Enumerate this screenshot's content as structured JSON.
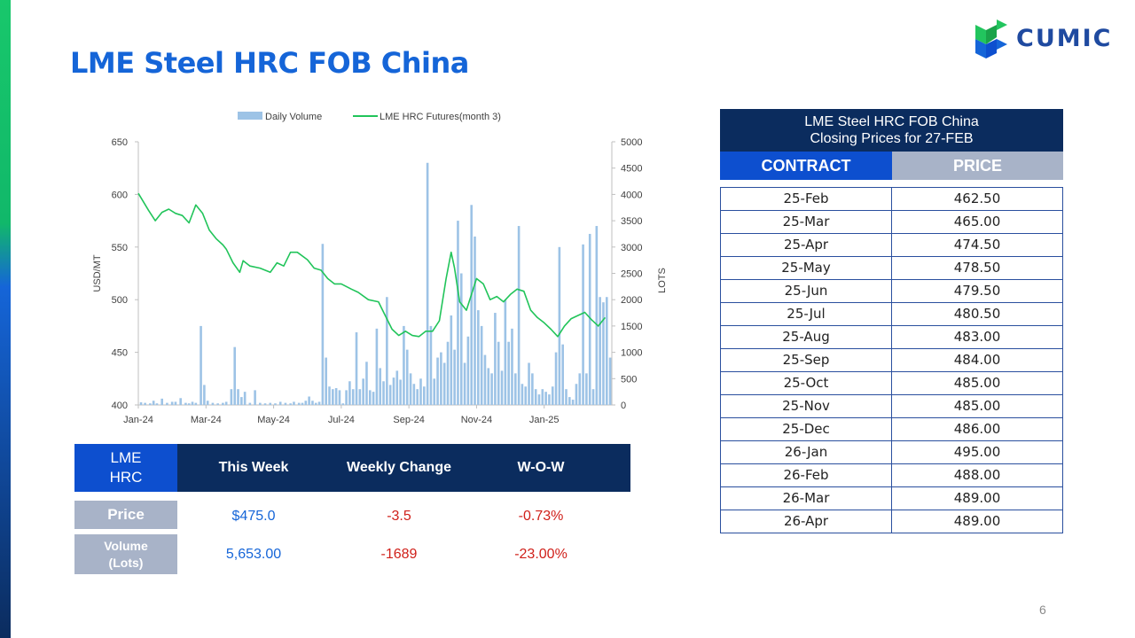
{
  "slide": {
    "title": "LME Steel HRC FOB China",
    "page_number": "6",
    "logo_text": "CUMIC"
  },
  "chart_data": {
    "type": "bar+line",
    "legend": [
      "Daily Volume",
      "LME HRC Futures(month 3)"
    ],
    "legend_position": "top",
    "ylabel_left": "USD/MT",
    "ylabel_right": "LOTS",
    "ylim_left": [
      400,
      650
    ],
    "ylim_right": [
      0,
      5000
    ],
    "y_ticks_left": [
      "400",
      "450",
      "500",
      "550",
      "600",
      "650"
    ],
    "y_ticks_right": [
      "0",
      "500",
      "1000",
      "1500",
      "2000",
      "2500",
      "3000",
      "3500",
      "4000",
      "4500",
      "5000"
    ],
    "x_ticks": [
      "Jan-24",
      "Mar-24",
      "May-24",
      "Jul-24",
      "Sep-24",
      "Nov-24",
      "Jan-25"
    ],
    "x_tick_months": [
      0,
      2,
      4,
      6,
      8,
      10,
      12
    ],
    "x_range_months": [
      0,
      14
    ],
    "colors": {
      "volume": "#9dc3e6",
      "futures": "#21c45a"
    },
    "futures_series": {
      "name": "LME HRC Futures(month 3)",
      "points": [
        [
          0.0,
          601
        ],
        [
          0.3,
          585
        ],
        [
          0.5,
          575
        ],
        [
          0.7,
          583
        ],
        [
          0.9,
          586
        ],
        [
          1.1,
          582
        ],
        [
          1.3,
          580
        ],
        [
          1.5,
          573
        ],
        [
          1.7,
          590
        ],
        [
          1.9,
          582
        ],
        [
          2.1,
          566
        ],
        [
          2.3,
          558
        ],
        [
          2.5,
          552
        ],
        [
          2.6,
          548
        ],
        [
          2.8,
          535
        ],
        [
          3.0,
          526
        ],
        [
          3.1,
          537
        ],
        [
          3.3,
          532
        ],
        [
          3.6,
          530
        ],
        [
          3.9,
          526
        ],
        [
          4.1,
          535
        ],
        [
          4.3,
          532
        ],
        [
          4.5,
          545
        ],
        [
          4.7,
          545
        ],
        [
          5.0,
          538
        ],
        [
          5.2,
          530
        ],
        [
          5.4,
          528
        ],
        [
          5.6,
          520
        ],
        [
          5.8,
          515
        ],
        [
          6.0,
          515
        ],
        [
          6.3,
          510
        ],
        [
          6.5,
          507
        ],
        [
          6.8,
          500
        ],
        [
          7.1,
          498
        ],
        [
          7.3,
          485
        ],
        [
          7.5,
          472
        ],
        [
          7.7,
          466
        ],
        [
          7.9,
          470
        ],
        [
          8.1,
          466
        ],
        [
          8.3,
          465
        ],
        [
          8.5,
          470
        ],
        [
          8.7,
          470
        ],
        [
          8.9,
          480
        ],
        [
          9.1,
          520
        ],
        [
          9.25,
          545
        ],
        [
          9.35,
          530
        ],
        [
          9.5,
          498
        ],
        [
          9.7,
          490
        ],
        [
          9.9,
          510
        ],
        [
          10.0,
          520
        ],
        [
          10.2,
          515
        ],
        [
          10.4,
          500
        ],
        [
          10.6,
          503
        ],
        [
          10.8,
          498
        ],
        [
          11.0,
          505
        ],
        [
          11.2,
          510
        ],
        [
          11.4,
          508
        ],
        [
          11.6,
          490
        ],
        [
          11.8,
          483
        ],
        [
          12.0,
          478
        ],
        [
          12.2,
          472
        ],
        [
          12.4,
          465
        ],
        [
          12.6,
          475
        ],
        [
          12.8,
          482
        ],
        [
          13.0,
          485
        ],
        [
          13.2,
          488
        ],
        [
          13.4,
          481
        ],
        [
          13.6,
          475
        ],
        [
          13.8,
          483
        ]
      ]
    },
    "volume_series": {
      "name": "Daily Volume",
      "points": [
        [
          0.08,
          50
        ],
        [
          0.2,
          40
        ],
        [
          0.35,
          30
        ],
        [
          0.45,
          80
        ],
        [
          0.55,
          30
        ],
        [
          0.7,
          120
        ],
        [
          0.85,
          40
        ],
        [
          1.0,
          60
        ],
        [
          1.1,
          60
        ],
        [
          1.25,
          130
        ],
        [
          1.4,
          40
        ],
        [
          1.5,
          30
        ],
        [
          1.6,
          60
        ],
        [
          1.7,
          40
        ],
        [
          1.85,
          1500
        ],
        [
          1.95,
          380
        ],
        [
          2.05,
          80
        ],
        [
          2.2,
          40
        ],
        [
          2.35,
          30
        ],
        [
          2.5,
          40
        ],
        [
          2.6,
          60
        ],
        [
          2.75,
          300
        ],
        [
          2.85,
          1100
        ],
        [
          2.95,
          300
        ],
        [
          3.05,
          150
        ],
        [
          3.15,
          250
        ],
        [
          3.3,
          40
        ],
        [
          3.45,
          280
        ],
        [
          3.6,
          40
        ],
        [
          3.75,
          30
        ],
        [
          3.9,
          40
        ],
        [
          4.05,
          30
        ],
        [
          4.2,
          60
        ],
        [
          4.35,
          40
        ],
        [
          4.5,
          30
        ],
        [
          4.6,
          60
        ],
        [
          4.75,
          40
        ],
        [
          4.85,
          40
        ],
        [
          4.95,
          80
        ],
        [
          5.05,
          160
        ],
        [
          5.15,
          80
        ],
        [
          5.25,
          40
        ],
        [
          5.35,
          60
        ],
        [
          5.45,
          3060
        ],
        [
          5.55,
          900
        ],
        [
          5.65,
          350
        ],
        [
          5.75,
          300
        ],
        [
          5.85,
          320
        ],
        [
          5.95,
          280
        ],
        [
          6.05,
          30
        ],
        [
          6.15,
          280
        ],
        [
          6.25,
          450
        ],
        [
          6.35,
          300
        ],
        [
          6.45,
          1380
        ],
        [
          6.55,
          300
        ],
        [
          6.65,
          500
        ],
        [
          6.75,
          820
        ],
        [
          6.85,
          280
        ],
        [
          6.95,
          250
        ],
        [
          7.05,
          1450
        ],
        [
          7.15,
          700
        ],
        [
          7.25,
          450
        ],
        [
          7.35,
          2050
        ],
        [
          7.45,
          380
        ],
        [
          7.55,
          520
        ],
        [
          7.65,
          650
        ],
        [
          7.75,
          480
        ],
        [
          7.85,
          1500
        ],
        [
          7.95,
          1050
        ],
        [
          8.05,
          600
        ],
        [
          8.15,
          400
        ],
        [
          8.25,
          300
        ],
        [
          8.35,
          500
        ],
        [
          8.45,
          350
        ],
        [
          8.55,
          4600
        ],
        [
          8.65,
          1500
        ],
        [
          8.75,
          500
        ],
        [
          8.85,
          900
        ],
        [
          8.95,
          1000
        ],
        [
          9.05,
          800
        ],
        [
          9.15,
          1200
        ],
        [
          9.25,
          1700
        ],
        [
          9.35,
          1050
        ],
        [
          9.45,
          3500
        ],
        [
          9.55,
          2500
        ],
        [
          9.65,
          800
        ],
        [
          9.75,
          1300
        ],
        [
          9.85,
          3800
        ],
        [
          9.95,
          3200
        ],
        [
          10.05,
          1800
        ],
        [
          10.15,
          1500
        ],
        [
          10.25,
          950
        ],
        [
          10.35,
          700
        ],
        [
          10.45,
          600
        ],
        [
          10.55,
          1750
        ],
        [
          10.65,
          1200
        ],
        [
          10.75,
          650
        ],
        [
          10.85,
          2000
        ],
        [
          10.95,
          1200
        ],
        [
          11.05,
          1450
        ],
        [
          11.15,
          600
        ],
        [
          11.25,
          3400
        ],
        [
          11.35,
          400
        ],
        [
          11.45,
          350
        ],
        [
          11.55,
          800
        ],
        [
          11.65,
          600
        ],
        [
          11.75,
          300
        ],
        [
          11.85,
          200
        ],
        [
          11.95,
          300
        ],
        [
          12.05,
          250
        ],
        [
          12.15,
          200
        ],
        [
          12.25,
          350
        ],
        [
          12.35,
          1000
        ],
        [
          12.45,
          3000
        ],
        [
          12.55,
          1150
        ],
        [
          12.65,
          300
        ],
        [
          12.75,
          150
        ],
        [
          12.85,
          100
        ],
        [
          12.95,
          400
        ],
        [
          13.05,
          600
        ],
        [
          13.15,
          3050
        ],
        [
          13.25,
          600
        ],
        [
          13.35,
          3250
        ],
        [
          13.45,
          300
        ],
        [
          13.55,
          3400
        ],
        [
          13.65,
          2050
        ],
        [
          13.75,
          1950
        ],
        [
          13.85,
          2050
        ],
        [
          13.95,
          900
        ]
      ]
    }
  },
  "summary_table": {
    "corner": "LME HRC",
    "headers": [
      "This Week",
      "Weekly Change",
      "W-O-W"
    ],
    "rows": [
      {
        "label": "Price",
        "values": [
          "$475.0",
          "-3.5",
          "-0.73%"
        ]
      },
      {
        "label": "Volume (Lots)",
        "values": [
          "5,653.00",
          "-1689",
          "-23.00%"
        ]
      }
    ],
    "colors": {
      "value": "#1565d8",
      "change": "#d0201a"
    }
  },
  "price_table": {
    "title_line1": "LME Steel HRC FOB China",
    "title_line2": "Closing Prices for 27-FEB",
    "col_contract": "CONTRACT",
    "col_price": "PRICE",
    "rows": [
      {
        "contract": "25-Feb",
        "price": "462.50"
      },
      {
        "contract": "25-Mar",
        "price": "465.00"
      },
      {
        "contract": "25-Apr",
        "price": "474.50"
      },
      {
        "contract": "25-May",
        "price": "478.50"
      },
      {
        "contract": "25-Jun",
        "price": "479.50"
      },
      {
        "contract": "25-Jul",
        "price": "480.50"
      },
      {
        "contract": "25-Aug",
        "price": "483.00"
      },
      {
        "contract": "25-Sep",
        "price": "484.00"
      },
      {
        "contract": "25-Oct",
        "price": "485.00"
      },
      {
        "contract": "25-Nov",
        "price": "485.00"
      },
      {
        "contract": "25-Dec",
        "price": "486.00"
      },
      {
        "contract": "26-Jan",
        "price": "495.00"
      },
      {
        "contract": "26-Feb",
        "price": "488.00"
      },
      {
        "contract": "26-Mar",
        "price": "489.00"
      },
      {
        "contract": "26-Apr",
        "price": "489.00"
      }
    ]
  }
}
